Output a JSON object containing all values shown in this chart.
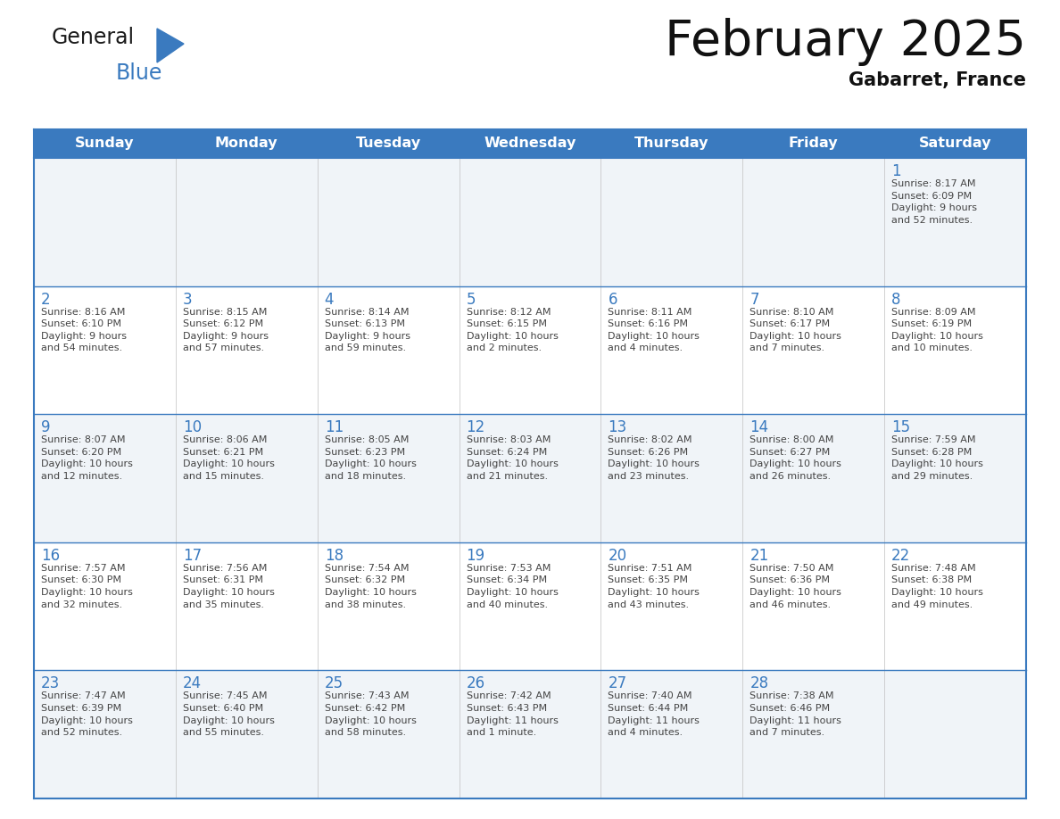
{
  "title": "February 2025",
  "subtitle": "Gabarret, France",
  "days_of_week": [
    "Sunday",
    "Monday",
    "Tuesday",
    "Wednesday",
    "Thursday",
    "Friday",
    "Saturday"
  ],
  "header_bg": "#3a7abf",
  "header_text_color": "#ffffff",
  "cell_bg_light": "#f0f4f8",
  "cell_bg_white": "#ffffff",
  "border_color": "#3a7abf",
  "day_number_color": "#3a7abf",
  "info_text_color": "#444444",
  "title_color": "#111111",
  "subtitle_color": "#111111",
  "calendar_data": [
    [
      null,
      null,
      null,
      null,
      null,
      null,
      {
        "day": 1,
        "sunrise": "8:17 AM",
        "sunset": "6:09 PM",
        "daylight": "9 hours\nand 52 minutes."
      }
    ],
    [
      {
        "day": 2,
        "sunrise": "8:16 AM",
        "sunset": "6:10 PM",
        "daylight": "9 hours\nand 54 minutes."
      },
      {
        "day": 3,
        "sunrise": "8:15 AM",
        "sunset": "6:12 PM",
        "daylight": "9 hours\nand 57 minutes."
      },
      {
        "day": 4,
        "sunrise": "8:14 AM",
        "sunset": "6:13 PM",
        "daylight": "9 hours\nand 59 minutes."
      },
      {
        "day": 5,
        "sunrise": "8:12 AM",
        "sunset": "6:15 PM",
        "daylight": "10 hours\nand 2 minutes."
      },
      {
        "day": 6,
        "sunrise": "8:11 AM",
        "sunset": "6:16 PM",
        "daylight": "10 hours\nand 4 minutes."
      },
      {
        "day": 7,
        "sunrise": "8:10 AM",
        "sunset": "6:17 PM",
        "daylight": "10 hours\nand 7 minutes."
      },
      {
        "day": 8,
        "sunrise": "8:09 AM",
        "sunset": "6:19 PM",
        "daylight": "10 hours\nand 10 minutes."
      }
    ],
    [
      {
        "day": 9,
        "sunrise": "8:07 AM",
        "sunset": "6:20 PM",
        "daylight": "10 hours\nand 12 minutes."
      },
      {
        "day": 10,
        "sunrise": "8:06 AM",
        "sunset": "6:21 PM",
        "daylight": "10 hours\nand 15 minutes."
      },
      {
        "day": 11,
        "sunrise": "8:05 AM",
        "sunset": "6:23 PM",
        "daylight": "10 hours\nand 18 minutes."
      },
      {
        "day": 12,
        "sunrise": "8:03 AM",
        "sunset": "6:24 PM",
        "daylight": "10 hours\nand 21 minutes."
      },
      {
        "day": 13,
        "sunrise": "8:02 AM",
        "sunset": "6:26 PM",
        "daylight": "10 hours\nand 23 minutes."
      },
      {
        "day": 14,
        "sunrise": "8:00 AM",
        "sunset": "6:27 PM",
        "daylight": "10 hours\nand 26 minutes."
      },
      {
        "day": 15,
        "sunrise": "7:59 AM",
        "sunset": "6:28 PM",
        "daylight": "10 hours\nand 29 minutes."
      }
    ],
    [
      {
        "day": 16,
        "sunrise": "7:57 AM",
        "sunset": "6:30 PM",
        "daylight": "10 hours\nand 32 minutes."
      },
      {
        "day": 17,
        "sunrise": "7:56 AM",
        "sunset": "6:31 PM",
        "daylight": "10 hours\nand 35 minutes."
      },
      {
        "day": 18,
        "sunrise": "7:54 AM",
        "sunset": "6:32 PM",
        "daylight": "10 hours\nand 38 minutes."
      },
      {
        "day": 19,
        "sunrise": "7:53 AM",
        "sunset": "6:34 PM",
        "daylight": "10 hours\nand 40 minutes."
      },
      {
        "day": 20,
        "sunrise": "7:51 AM",
        "sunset": "6:35 PM",
        "daylight": "10 hours\nand 43 minutes."
      },
      {
        "day": 21,
        "sunrise": "7:50 AM",
        "sunset": "6:36 PM",
        "daylight": "10 hours\nand 46 minutes."
      },
      {
        "day": 22,
        "sunrise": "7:48 AM",
        "sunset": "6:38 PM",
        "daylight": "10 hours\nand 49 minutes."
      }
    ],
    [
      {
        "day": 23,
        "sunrise": "7:47 AM",
        "sunset": "6:39 PM",
        "daylight": "10 hours\nand 52 minutes."
      },
      {
        "day": 24,
        "sunrise": "7:45 AM",
        "sunset": "6:40 PM",
        "daylight": "10 hours\nand 55 minutes."
      },
      {
        "day": 25,
        "sunrise": "7:43 AM",
        "sunset": "6:42 PM",
        "daylight": "10 hours\nand 58 minutes."
      },
      {
        "day": 26,
        "sunrise": "7:42 AM",
        "sunset": "6:43 PM",
        "daylight": "11 hours\nand 1 minute."
      },
      {
        "day": 27,
        "sunrise": "7:40 AM",
        "sunset": "6:44 PM",
        "daylight": "11 hours\nand 4 minutes."
      },
      {
        "day": 28,
        "sunrise": "7:38 AM",
        "sunset": "6:46 PM",
        "daylight": "11 hours\nand 7 minutes."
      },
      null
    ]
  ],
  "logo_color": "#3a7abf",
  "logo_black": "#1a1a1a"
}
